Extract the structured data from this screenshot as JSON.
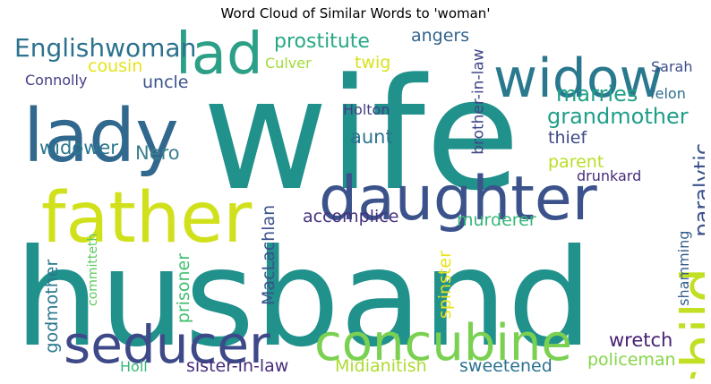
{
  "chart_data": {
    "type": "wordcloud",
    "title": "Word Cloud of Similar Words to 'woman'",
    "words": [
      {
        "text": "wife",
        "color": "#21918c"
      },
      {
        "text": "husband",
        "color": "#21918c"
      },
      {
        "text": "lady",
        "color": "#31688e"
      },
      {
        "text": "father",
        "color": "#d0e11c"
      },
      {
        "text": "daughter",
        "color": "#3b528b"
      },
      {
        "text": "widow",
        "color": "#2a788e"
      },
      {
        "text": "lad",
        "color": "#2c9f87"
      },
      {
        "text": "child",
        "color": "#c2df23"
      },
      {
        "text": "seducer",
        "color": "#3e4989"
      },
      {
        "text": "concubine",
        "color": "#7ad151"
      },
      {
        "text": "Englishwoman",
        "color": "#2c728e"
      },
      {
        "text": "prostitute",
        "color": "#26a884"
      },
      {
        "text": "grandmother",
        "color": "#1f9e89"
      },
      {
        "text": "marries",
        "color": "#1fa088"
      },
      {
        "text": "paralytic",
        "color": "#3b528b"
      },
      {
        "text": "cousin",
        "color": "#e4e419"
      },
      {
        "text": "uncle",
        "color": "#3b528b"
      },
      {
        "text": "widower",
        "color": "#2a768e"
      },
      {
        "text": "Nero",
        "color": "#3b7f8e"
      },
      {
        "text": "aunt",
        "color": "#2c728e"
      },
      {
        "text": "thief",
        "color": "#3e4989"
      },
      {
        "text": "parent",
        "color": "#b8de29"
      },
      {
        "text": "murderer",
        "color": "#35b779"
      },
      {
        "text": "accomplice",
        "color": "#46327e"
      },
      {
        "text": "drunkard",
        "color": "#472d7b"
      },
      {
        "text": "wretch",
        "color": "#482173"
      },
      {
        "text": "policeman",
        "color": "#86d549"
      },
      {
        "text": "sweetened",
        "color": "#2c728e"
      },
      {
        "text": "Midianitish",
        "color": "#addc30"
      },
      {
        "text": "sister-in-law",
        "color": "#472c7a"
      },
      {
        "text": "Holl",
        "color": "#37b878"
      },
      {
        "text": "godmother",
        "color": "#2a788e"
      },
      {
        "text": "committeth",
        "color": "#5ec962"
      },
      {
        "text": "prisoner",
        "color": "#44bf70"
      },
      {
        "text": "MacLachlan",
        "color": "#3b528b"
      },
      {
        "text": "spinster",
        "color": "#e7e419"
      },
      {
        "text": "shamming",
        "color": "#355f8d"
      },
      {
        "text": "brother-in-law",
        "color": "#404688"
      },
      {
        "text": "Holton",
        "color": "#433e85"
      },
      {
        "text": "angers",
        "color": "#33638d"
      },
      {
        "text": "Culver",
        "color": "#a2da37"
      },
      {
        "text": "twig",
        "color": "#d8e219"
      },
      {
        "text": "Connolly",
        "color": "#433e85"
      },
      {
        "text": "Sarah",
        "color": "#3d4d8a"
      },
      {
        "text": "felon",
        "color": "#2d708e"
      }
    ]
  }
}
